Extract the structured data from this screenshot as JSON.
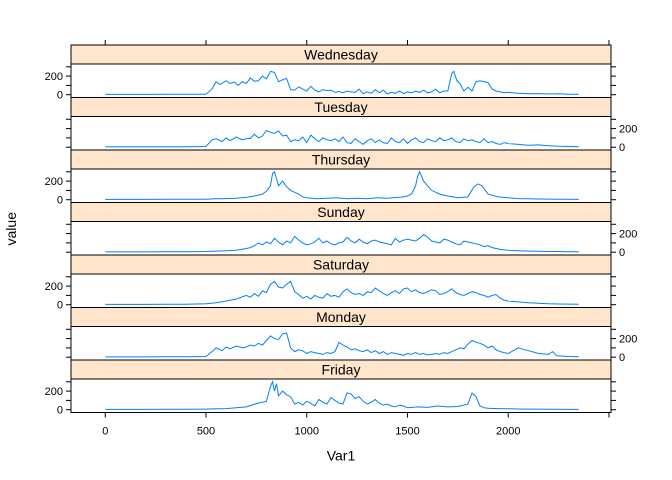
{
  "chart_data": {
    "type": "line",
    "xlabel": "Var1",
    "ylabel": "value",
    "xlim": [
      -170,
      2510
    ],
    "ylim": [
      -30,
      330
    ],
    "x_ticks": [
      0,
      500,
      1000,
      1500,
      2000
    ],
    "y_ticks": [
      0,
      200
    ],
    "line_color": "#0080ff",
    "strip_color": "#ffe5cc",
    "panels": [
      {
        "name": "Wednesday",
        "x": [
          0,
          100,
          200,
          300,
          400,
          500,
          530,
          550,
          570,
          600,
          620,
          640,
          660,
          680,
          700,
          720,
          740,
          760,
          780,
          800,
          820,
          840,
          860,
          880,
          900,
          920,
          940,
          960,
          980,
          1000,
          1020,
          1040,
          1060,
          1080,
          1100,
          1120,
          1140,
          1160,
          1180,
          1200,
          1220,
          1240,
          1260,
          1280,
          1300,
          1320,
          1340,
          1360,
          1380,
          1400,
          1420,
          1440,
          1460,
          1480,
          1500,
          1520,
          1540,
          1560,
          1580,
          1600,
          1620,
          1640,
          1660,
          1680,
          1700,
          1720,
          1730,
          1745,
          1760,
          1780,
          1800,
          1820,
          1840,
          1860,
          1880,
          1900,
          1920,
          1940,
          1960,
          1980,
          2000,
          2050,
          2100,
          2150,
          2200,
          2250,
          2300,
          2350
        ],
        "values": [
          3,
          3,
          3,
          4,
          4,
          6,
          60,
          140,
          110,
          150,
          120,
          135,
          100,
          140,
          120,
          180,
          145,
          150,
          200,
          170,
          250,
          240,
          140,
          160,
          175,
          55,
          50,
          85,
          60,
          40,
          90,
          50,
          30,
          55,
          45,
          50,
          25,
          35,
          20,
          40,
          30,
          25,
          60,
          10,
          30,
          15,
          55,
          20,
          50,
          10,
          25,
          15,
          40,
          12,
          30,
          20,
          40,
          25,
          50,
          20,
          30,
          60,
          20,
          40,
          40,
          230,
          250,
          150,
          120,
          40,
          80,
          40,
          140,
          150,
          140,
          130,
          60,
          40,
          30,
          20,
          25,
          15,
          10,
          12,
          8,
          10,
          5,
          5
        ]
      },
      {
        "name": "Tuesday",
        "x": [
          0,
          100,
          200,
          300,
          400,
          500,
          530,
          550,
          580,
          600,
          620,
          650,
          680,
          700,
          720,
          740,
          760,
          780,
          800,
          820,
          840,
          860,
          880,
          900,
          920,
          940,
          960,
          980,
          1000,
          1020,
          1040,
          1060,
          1080,
          1100,
          1120,
          1140,
          1160,
          1180,
          1200,
          1220,
          1240,
          1260,
          1280,
          1300,
          1320,
          1340,
          1360,
          1380,
          1400,
          1420,
          1440,
          1460,
          1480,
          1500,
          1520,
          1540,
          1560,
          1580,
          1600,
          1620,
          1640,
          1660,
          1680,
          1700,
          1720,
          1740,
          1760,
          1780,
          1800,
          1820,
          1840,
          1860,
          1880,
          1900,
          1920,
          1940,
          1960,
          1980,
          2000,
          2050,
          2100,
          2150,
          2200,
          2250,
          2300,
          2350
        ],
        "values": [
          4,
          4,
          4,
          5,
          5,
          8,
          80,
          90,
          60,
          100,
          70,
          110,
          80,
          90,
          95,
          140,
          100,
          120,
          180,
          160,
          150,
          175,
          120,
          130,
          60,
          80,
          70,
          110,
          50,
          130,
          90,
          60,
          100,
          80,
          70,
          90,
          60,
          110,
          50,
          40,
          90,
          60,
          30,
          70,
          90,
          50,
          80,
          50,
          40,
          100,
          60,
          50,
          90,
          40,
          80,
          100,
          60,
          50,
          90,
          70,
          60,
          100,
          70,
          80,
          100,
          60,
          50,
          90,
          70,
          80,
          60,
          50,
          90,
          50,
          60,
          40,
          30,
          50,
          40,
          30,
          20,
          25,
          15,
          10,
          8,
          5
        ]
      },
      {
        "name": "Thursday",
        "x": [
          0,
          100,
          200,
          300,
          400,
          500,
          550,
          600,
          650,
          700,
          740,
          780,
          800,
          820,
          830,
          840,
          860,
          880,
          900,
          920,
          940,
          960,
          980,
          1000,
          1050,
          1100,
          1150,
          1200,
          1250,
          1300,
          1350,
          1400,
          1450,
          1480,
          1500,
          1520,
          1540,
          1550,
          1560,
          1580,
          1600,
          1620,
          1640,
          1660,
          1680,
          1700,
          1750,
          1800,
          1830,
          1850,
          1870,
          1900,
          1950,
          2000,
          2050,
          2100,
          2150,
          2200,
          2250,
          2300,
          2350
        ],
        "values": [
          3,
          3,
          3,
          4,
          4,
          5,
          10,
          12,
          15,
          25,
          40,
          60,
          90,
          150,
          280,
          300,
          150,
          200,
          140,
          100,
          80,
          60,
          30,
          20,
          10,
          15,
          20,
          10,
          15,
          10,
          20,
          15,
          25,
          30,
          40,
          60,
          150,
          250,
          300,
          200,
          150,
          100,
          80,
          60,
          50,
          40,
          20,
          30,
          140,
          170,
          150,
          60,
          30,
          20,
          12,
          10,
          8,
          7,
          5,
          4,
          3
        ]
      },
      {
        "name": "Sunday",
        "x": [
          0,
          100,
          200,
          300,
          400,
          500,
          550,
          600,
          650,
          700,
          720,
          740,
          760,
          780,
          800,
          820,
          840,
          860,
          880,
          900,
          920,
          940,
          960,
          980,
          1000,
          1020,
          1040,
          1060,
          1080,
          1100,
          1120,
          1140,
          1160,
          1180,
          1200,
          1220,
          1240,
          1260,
          1280,
          1300,
          1320,
          1340,
          1360,
          1380,
          1400,
          1420,
          1440,
          1460,
          1480,
          1500,
          1520,
          1540,
          1560,
          1580,
          1600,
          1620,
          1640,
          1660,
          1680,
          1700,
          1720,
          1740,
          1760,
          1780,
          1800,
          1820,
          1840,
          1860,
          1880,
          1900,
          1920,
          1940,
          1960,
          1980,
          2000,
          2050,
          2100,
          2150,
          2200,
          2250,
          2300,
          2350
        ],
        "values": [
          3,
          3,
          3,
          4,
          5,
          8,
          12,
          15,
          20,
          40,
          50,
          70,
          100,
          80,
          110,
          90,
          150,
          110,
          80,
          120,
          100,
          170,
          130,
          100,
          80,
          90,
          110,
          150,
          100,
          120,
          90,
          80,
          100,
          110,
          160,
          120,
          100,
          140,
          110,
          90,
          120,
          130,
          110,
          100,
          90,
          80,
          150,
          110,
          130,
          140,
          130,
          120,
          150,
          190,
          160,
          120,
          110,
          100,
          140,
          130,
          110,
          90,
          80,
          120,
          110,
          100,
          90,
          80,
          60,
          70,
          50,
          40,
          30,
          25,
          20,
          15,
          12,
          10,
          8,
          8,
          6,
          5
        ]
      },
      {
        "name": "Saturday",
        "x": [
          0,
          100,
          200,
          300,
          400,
          500,
          550,
          600,
          650,
          700,
          720,
          740,
          760,
          780,
          800,
          820,
          840,
          860,
          880,
          900,
          920,
          940,
          960,
          980,
          1000,
          1020,
          1040,
          1060,
          1080,
          1100,
          1120,
          1140,
          1160,
          1180,
          1200,
          1220,
          1240,
          1260,
          1280,
          1300,
          1320,
          1340,
          1360,
          1380,
          1400,
          1420,
          1440,
          1460,
          1480,
          1500,
          1520,
          1540,
          1560,
          1580,
          1600,
          1620,
          1640,
          1660,
          1680,
          1700,
          1720,
          1740,
          1760,
          1780,
          1800,
          1820,
          1840,
          1860,
          1880,
          1900,
          1920,
          1940,
          1960,
          1980,
          2000,
          2050,
          2100,
          2150,
          2200,
          2250,
          2300,
          2350
        ],
        "values": [
          3,
          3,
          3,
          4,
          5,
          10,
          20,
          40,
          60,
          100,
          80,
          120,
          90,
          150,
          130,
          220,
          250,
          190,
          180,
          220,
          250,
          140,
          110,
          70,
          90,
          60,
          100,
          80,
          70,
          120,
          90,
          100,
          80,
          140,
          170,
          130,
          110,
          120,
          100,
          140,
          130,
          180,
          150,
          120,
          100,
          130,
          150,
          120,
          170,
          180,
          140,
          160,
          130,
          120,
          140,
          160,
          150,
          110,
          120,
          140,
          170,
          130,
          110,
          100,
          120,
          140,
          130,
          110,
          100,
          80,
          100,
          110,
          70,
          50,
          40,
          30,
          20,
          15,
          10,
          8,
          6,
          5
        ]
      },
      {
        "name": "Monday",
        "x": [
          0,
          100,
          200,
          300,
          400,
          500,
          530,
          550,
          580,
          600,
          620,
          650,
          680,
          700,
          720,
          740,
          760,
          780,
          800,
          820,
          840,
          860,
          880,
          900,
          920,
          940,
          960,
          980,
          1000,
          1020,
          1040,
          1060,
          1080,
          1100,
          1120,
          1140,
          1160,
          1180,
          1200,
          1220,
          1240,
          1260,
          1280,
          1300,
          1320,
          1340,
          1360,
          1380,
          1400,
          1420,
          1440,
          1460,
          1480,
          1500,
          1520,
          1540,
          1560,
          1580,
          1600,
          1620,
          1640,
          1660,
          1680,
          1700,
          1720,
          1740,
          1760,
          1780,
          1800,
          1820,
          1840,
          1860,
          1880,
          1900,
          1920,
          1940,
          1960,
          1980,
          2000,
          2050,
          2100,
          2150,
          2200,
          2220,
          2240,
          2300,
          2350
        ],
        "values": [
          3,
          3,
          3,
          4,
          5,
          8,
          60,
          100,
          70,
          110,
          90,
          120,
          100,
          110,
          130,
          120,
          150,
          130,
          180,
          230,
          200,
          190,
          250,
          260,
          100,
          60,
          80,
          70,
          40,
          60,
          50,
          40,
          30,
          50,
          40,
          60,
          160,
          130,
          110,
          80,
          90,
          70,
          60,
          80,
          50,
          70,
          40,
          60,
          30,
          50,
          40,
          30,
          20,
          40,
          30,
          50,
          30,
          40,
          25,
          30,
          40,
          30,
          50,
          40,
          60,
          80,
          100,
          90,
          140,
          180,
          160,
          150,
          130,
          100,
          120,
          80,
          60,
          50,
          40,
          100,
          70,
          40,
          30,
          60,
          15,
          8,
          5
        ]
      },
      {
        "name": "Friday",
        "x": [
          0,
          100,
          200,
          300,
          400,
          500,
          550,
          600,
          650,
          700,
          740,
          780,
          800,
          820,
          830,
          840,
          850,
          860,
          880,
          900,
          920,
          940,
          960,
          980,
          1000,
          1020,
          1040,
          1060,
          1080,
          1100,
          1120,
          1140,
          1160,
          1180,
          1200,
          1220,
          1240,
          1260,
          1280,
          1300,
          1320,
          1340,
          1360,
          1380,
          1400,
          1420,
          1440,
          1460,
          1480,
          1500,
          1550,
          1600,
          1650,
          1700,
          1750,
          1800,
          1820,
          1840,
          1860,
          1880,
          1900,
          1950,
          2000,
          2050,
          2100,
          2150,
          2200,
          2250,
          2300,
          2350
        ],
        "values": [
          3,
          3,
          3,
          4,
          4,
          6,
          10,
          12,
          20,
          30,
          60,
          80,
          90,
          250,
          300,
          200,
          280,
          150,
          200,
          160,
          140,
          60,
          80,
          50,
          90,
          70,
          40,
          110,
          80,
          60,
          130,
          100,
          70,
          60,
          180,
          170,
          120,
          140,
          90,
          60,
          80,
          110,
          70,
          50,
          60,
          40,
          30,
          50,
          40,
          20,
          30,
          25,
          40,
          30,
          35,
          60,
          180,
          140,
          40,
          20,
          15,
          12,
          10,
          8,
          7,
          6,
          5,
          4,
          3,
          3
        ]
      }
    ]
  }
}
